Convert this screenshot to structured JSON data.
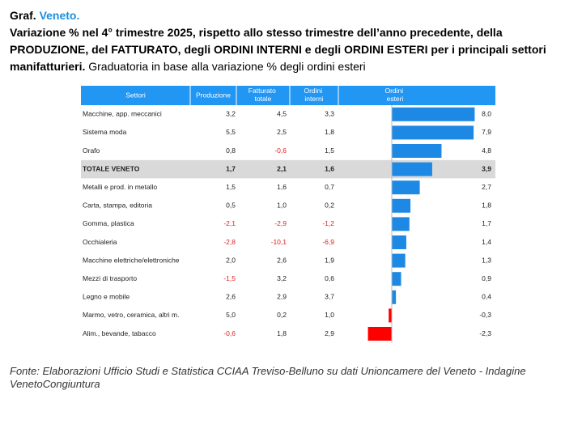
{
  "chart_data": {
    "type": "bar",
    "title_prefix": "Graf.",
    "title_region": "Veneto.",
    "subtitle": "Variazione % nel 4° trimestre 2025, rispetto allo stesso trimestre dell’anno precedente, della PRODUZIONE, del FATTURATO, degli ORDINI INTERNI e degli ORDINI ESTERI per i principali settori manifatturieri.",
    "subtitle_note": "Graduatoria in base alla variazione % degli ordini esteri",
    "category_label": "Settori",
    "categories": [
      "Macchine, app. meccanici",
      "Sistema moda",
      "Orafo",
      "TOTALE VENETO",
      "Metalli e prod. in metallo",
      "Carta, stampa, editoria",
      "Gomma, plastica",
      "Occhialeria",
      "Macchine elettriche/elettroniche",
      "Mezzi di trasporto",
      "Legno e mobile",
      "Marmo, vetro, ceramica, altri m.",
      "Alim., bevande, tabacco"
    ],
    "highlight_row": 3,
    "series": [
      {
        "name": "Produzione",
        "values": [
          3.2,
          5.5,
          0.8,
          1.7,
          1.5,
          0.5,
          -2.1,
          -2.8,
          2.0,
          -1.5,
          2.6,
          5.0,
          -0.6
        ],
        "value_labels": [
          "3,2",
          "5,5",
          "0,8",
          "1,7",
          "1,5",
          "0,5",
          "-2,1",
          "-2,8",
          "2,0",
          "-1,5",
          "2,6",
          "5,0",
          "-0,6"
        ]
      },
      {
        "name": "Fatturato totale",
        "values": [
          4.5,
          2.5,
          -0.6,
          2.1,
          1.6,
          1.0,
          -2.9,
          -10.1,
          2.6,
          3.2,
          2.9,
          0.2,
          1.8
        ],
        "value_labels": [
          "4,5",
          "2,5",
          "-0,6",
          "2,1",
          "1,6",
          "1,0",
          "-2,9",
          "-10,1",
          "2,6",
          "3,2",
          "2,9",
          "0,2",
          "1,8"
        ]
      },
      {
        "name": "Ordini interni",
        "values": [
          3.3,
          1.8,
          1.5,
          1.6,
          0.7,
          0.2,
          -1.2,
          -6.9,
          1.9,
          0.6,
          3.7,
          1.0,
          2.9
        ],
        "value_labels": [
          "3,3",
          "1,8",
          "1,5",
          "1,6",
          "0,7",
          "0,2",
          "-1,2",
          "-6,9",
          "1,9",
          "0,6",
          "3,7",
          "1,0",
          "2,9"
        ]
      },
      {
        "name": "Ordini esteri",
        "values": [
          8.0,
          7.9,
          4.8,
          3.9,
          2.7,
          1.8,
          1.7,
          1.4,
          1.3,
          0.9,
          0.4,
          -0.3,
          -2.3
        ],
        "value_labels": [
          "8,0",
          "7,9",
          "4,8",
          "3,9",
          "2,7",
          "1,8",
          "1,7",
          "1,4",
          "1,3",
          "0,9",
          "0,4",
          "-0,3",
          "-2,3"
        ],
        "color": "#1e88e5",
        "negative_color": "#ff0000",
        "bars": true
      }
    ],
    "xlim": [
      -5,
      10
    ],
    "header_color": "#2196f3",
    "negative_text_color": "#e02020",
    "source": "Fonte: Elaborazioni Ufficio Studi e Statistica CCIAA Treviso-Belluno su dati Unioncamere del Veneto - Indagine VenetoCongiuntura"
  }
}
